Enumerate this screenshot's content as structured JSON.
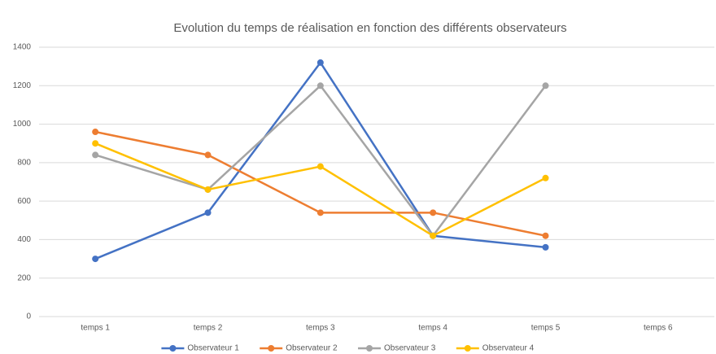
{
  "chart_data": {
    "type": "line",
    "title": "Evolution du temps de réalisation en fonction des différents observateurs",
    "categories": [
      "temps 1",
      "temps 2",
      "temps 3",
      "temps 4",
      "temps 5",
      "temps 6"
    ],
    "series": [
      {
        "name": "Observateur 1",
        "color": "#4472c4",
        "values": [
          300,
          540,
          1320,
          420,
          360,
          null
        ]
      },
      {
        "name": "Observateur 2",
        "color": "#ed7d31",
        "values": [
          960,
          840,
          540,
          540,
          420,
          null
        ]
      },
      {
        "name": "Observateur 3",
        "color": "#a5a5a5",
        "values": [
          840,
          660,
          1200,
          420,
          1200,
          null
        ]
      },
      {
        "name": "Observateur 4",
        "color": "#ffc000",
        "values": [
          900,
          660,
          780,
          420,
          720,
          null
        ]
      }
    ],
    "ylim": [
      0,
      1400
    ],
    "yticks": [
      0,
      200,
      400,
      600,
      800,
      1000,
      1200,
      1400
    ],
    "grid": true,
    "legend": "bottom"
  }
}
